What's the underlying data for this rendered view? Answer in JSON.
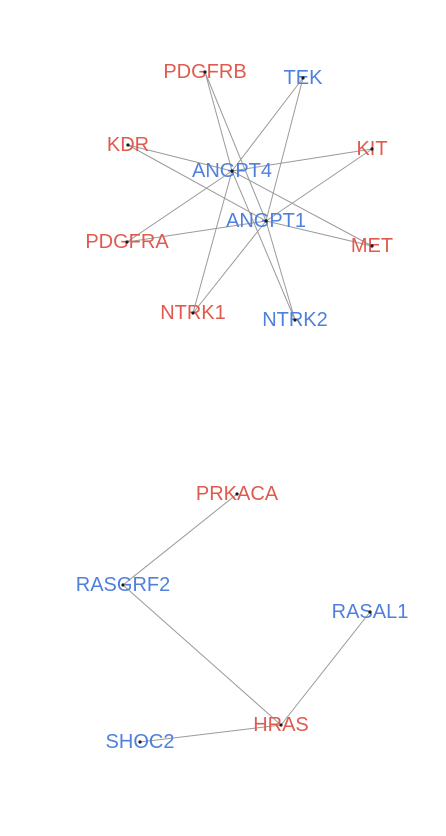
{
  "colors": {
    "red_group": "#e05a4e",
    "blue_group": "#4f80dd",
    "edge": "#9a9a9a"
  },
  "nodes": [
    {
      "id": "PDGFRB",
      "label": "PDGFRB",
      "group": "red"
    },
    {
      "id": "TEK",
      "label": "TEK",
      "group": "blue"
    },
    {
      "id": "KDR",
      "label": "KDR",
      "group": "red"
    },
    {
      "id": "KIT",
      "label": "KIT",
      "group": "red"
    },
    {
      "id": "ANGPT4",
      "label": "ANGPT4",
      "group": "blue"
    },
    {
      "id": "ANGPT1",
      "label": "ANGPT1",
      "group": "blue"
    },
    {
      "id": "PDGFRA",
      "label": "PDGFRA",
      "group": "red"
    },
    {
      "id": "MET",
      "label": "MET",
      "group": "red"
    },
    {
      "id": "NTRK1",
      "label": "NTRK1",
      "group": "red"
    },
    {
      "id": "NTRK2",
      "label": "NTRK2",
      "group": "blue"
    },
    {
      "id": "PRKACA",
      "label": "PRKACA",
      "group": "red"
    },
    {
      "id": "RASGRF2",
      "label": "RASGRF2",
      "group": "blue"
    },
    {
      "id": "RASAL1",
      "label": "RASAL1",
      "group": "blue"
    },
    {
      "id": "HRAS",
      "label": "HRAS",
      "group": "red"
    },
    {
      "id": "SHOC2",
      "label": "SHOC2",
      "group": "blue"
    }
  ],
  "edges": [
    [
      "ANGPT4",
      "PDGFRB"
    ],
    [
      "ANGPT4",
      "TEK"
    ],
    [
      "ANGPT4",
      "KDR"
    ],
    [
      "ANGPT4",
      "KIT"
    ],
    [
      "ANGPT4",
      "PDGFRA"
    ],
    [
      "ANGPT4",
      "MET"
    ],
    [
      "ANGPT4",
      "NTRK1"
    ],
    [
      "ANGPT4",
      "NTRK2"
    ],
    [
      "ANGPT1",
      "PDGFRB"
    ],
    [
      "ANGPT1",
      "TEK"
    ],
    [
      "ANGPT1",
      "KDR"
    ],
    [
      "ANGPT1",
      "KIT"
    ],
    [
      "ANGPT1",
      "PDGFRA"
    ],
    [
      "ANGPT1",
      "MET"
    ],
    [
      "ANGPT1",
      "NTRK1"
    ],
    [
      "ANGPT1",
      "NTRK2"
    ],
    [
      "PRKACA",
      "RASGRF2"
    ],
    [
      "RASGRF2",
      "HRAS"
    ],
    [
      "RASAL1",
      "HRAS"
    ],
    [
      "SHOC2",
      "HRAS"
    ]
  ]
}
